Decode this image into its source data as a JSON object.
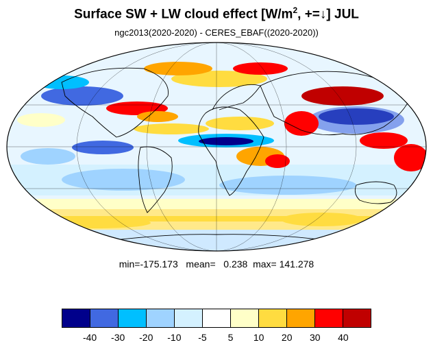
{
  "header": {
    "title_main": "Surface SW + LW cloud effect [W/m",
    "title_sup": "2",
    "title_tail": ", +=↓]  JUL",
    "subtitle": "ngc2013(2020-2020) - CERES_EBAF((2020-2020))"
  },
  "stats": {
    "text": "min=-175.173   mean=   0.238  max= 141.278"
  },
  "colorbar": {
    "colors": [
      "#00008b",
      "#4169e1",
      "#00bfff",
      "#9fd3ff",
      "#d4f1ff",
      "#ffffff",
      "#ffffc8",
      "#ffdc40",
      "#ffa500",
      "#ff0000",
      "#c00000"
    ],
    "ticks": [
      "-40",
      "-30",
      "-20",
      "-10",
      "-5",
      "5",
      "10",
      "20",
      "30",
      "40"
    ]
  },
  "map": {
    "projection": "mollweide",
    "palette": {
      "land_outline": "#000000",
      "grid": "#000000"
    }
  }
}
